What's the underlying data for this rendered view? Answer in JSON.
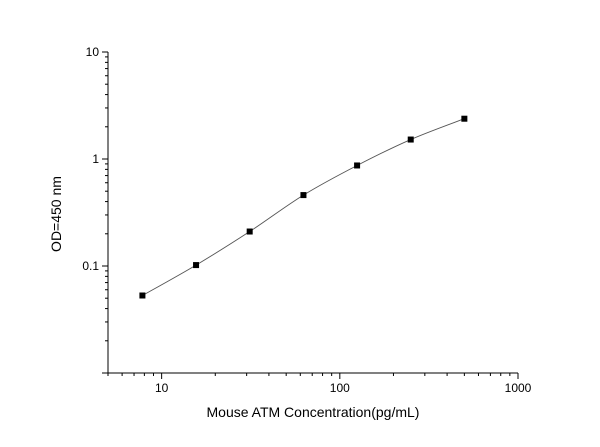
{
  "chart_data": {
    "type": "scatter",
    "title": "",
    "xlabel": "Mouse ATM Concentration(pg/mL)",
    "ylabel": "OD=450 nm",
    "x_scale": "log",
    "y_scale": "log",
    "xlim": [
      5,
      1000
    ],
    "ylim": [
      0.01,
      10
    ],
    "x_tick_labels": [
      "10",
      "100",
      "1000"
    ],
    "y_tick_labels": [
      "0.1",
      "1",
      "10"
    ],
    "grid": false,
    "legend": "none",
    "fit_line": true,
    "series": [
      {
        "x": [
          7.8,
          15.6,
          31.2,
          62.5,
          125,
          250,
          500
        ],
        "y": [
          0.053,
          0.102,
          0.21,
          0.46,
          0.87,
          1.52,
          2.38
        ]
      }
    ],
    "colors": {
      "marker": "#000000",
      "line": "#555555",
      "axis": "#000000"
    }
  }
}
